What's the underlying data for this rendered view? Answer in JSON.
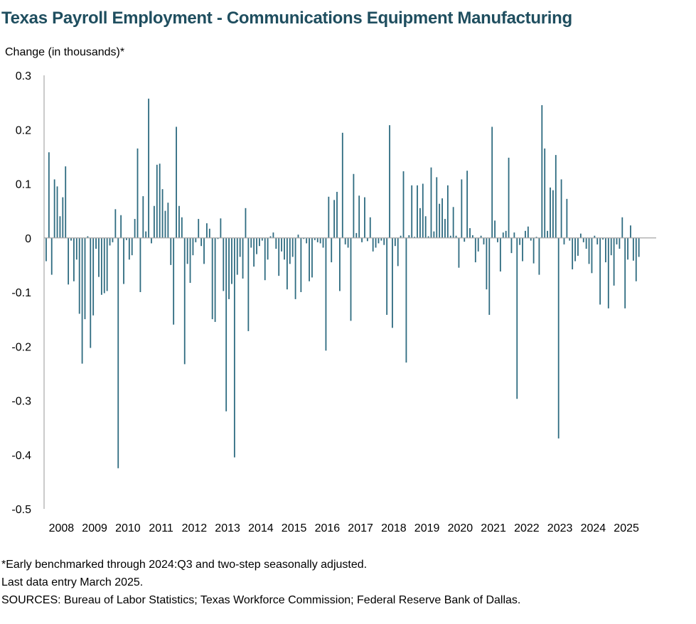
{
  "chart_data": {
    "type": "bar",
    "title": "Texas Payroll Employment - Communications Equipment Manufacturing",
    "ylabel": "Change (in thousands)*",
    "xlabel": "",
    "ylim": [
      -0.5,
      0.3
    ],
    "yticks": [
      "0.3",
      "0.2",
      "0.1",
      "0",
      "-0.1",
      "-0.2",
      "-0.3",
      "-0.4",
      "-0.5"
    ],
    "year_labels": [
      "2008",
      "2009",
      "2010",
      "2011",
      "2012",
      "2013",
      "2014",
      "2015",
      "2016",
      "2017",
      "2018",
      "2019",
      "2020",
      "2021",
      "2022",
      "2023",
      "2024",
      "2025"
    ],
    "start": "2008-01",
    "end": "2025-03",
    "bar_color": "#2e6b80",
    "grid": false,
    "values": [
      -0.043,
      0.158,
      -0.068,
      0.108,
      0.095,
      0.04,
      0.075,
      0.132,
      -0.086,
      -0.005,
      -0.08,
      -0.04,
      -0.14,
      -0.232,
      -0.15,
      0.003,
      -0.203,
      -0.143,
      -0.02,
      -0.072,
      -0.105,
      -0.102,
      -0.098,
      -0.014,
      -0.008,
      0.053,
      -0.425,
      0.042,
      -0.085,
      -0.004,
      -0.04,
      -0.032,
      0.035,
      0.165,
      -0.1,
      0.077,
      0.012,
      0.257,
      -0.01,
      0.059,
      0.135,
      0.137,
      0.09,
      0.05,
      0.065,
      -0.05,
      -0.16,
      0.205,
      0.059,
      0.038,
      -0.233,
      -0.048,
      -0.083,
      -0.032,
      -0.008,
      0.035,
      -0.015,
      -0.048,
      0.027,
      0.017,
      -0.15,
      -0.155,
      -0.002,
      0.036,
      -0.098,
      -0.32,
      -0.113,
      -0.085,
      -0.405,
      -0.068,
      -0.035,
      -0.075,
      0.055,
      -0.172,
      -0.018,
      -0.053,
      -0.03,
      -0.015,
      -0.005,
      -0.078,
      -0.04,
      0.003,
      0.01,
      -0.02,
      -0.07,
      -0.025,
      -0.04,
      -0.095,
      -0.048,
      -0.035,
      -0.113,
      0.006,
      -0.1,
      -0.002,
      -0.01,
      -0.08,
      -0.073,
      -0.004,
      -0.008,
      -0.01,
      -0.018,
      -0.208,
      0.076,
      -0.045,
      0.07,
      0.085,
      -0.098,
      0.194,
      -0.012,
      -0.018,
      -0.153,
      0.118,
      0.009,
      0.078,
      -0.008,
      0.075,
      -0.006,
      0.038,
      -0.025,
      -0.018,
      -0.01,
      -0.005,
      -0.013,
      -0.142,
      0.208,
      -0.166,
      -0.015,
      -0.052,
      0.004,
      0.123,
      -0.23,
      0.005,
      0.097,
      0.002,
      0.097,
      0.055,
      0.1,
      0.04,
      0.003,
      0.13,
      0.012,
      0.112,
      0.063,
      0.073,
      0.035,
      0.097,
      0.004,
      0.057,
      0.004,
      -0.055,
      0.108,
      -0.007,
      0.124,
      0.018,
      0.005,
      -0.045,
      -0.025,
      0.004,
      -0.012,
      -0.095,
      -0.142,
      0.205,
      0.032,
      -0.008,
      -0.062,
      0.01,
      0.013,
      0.148,
      -0.028,
      0.01,
      -0.297,
      -0.013,
      -0.043,
      0.013,
      0.021,
      -0.005,
      -0.047,
      0.002,
      -0.068,
      0.245,
      0.165,
      0.013,
      0.093,
      0.088,
      0.153,
      -0.37,
      0.108,
      -0.012,
      0.072,
      -0.005,
      -0.058,
      -0.043,
      -0.033,
      0.008,
      -0.008,
      -0.02,
      -0.048,
      -0.065,
      0.004,
      -0.012,
      -0.123,
      -0.003,
      -0.045,
      -0.13,
      -0.032,
      -0.088,
      -0.012,
      -0.02,
      0.038,
      -0.13,
      -0.04,
      0.023,
      -0.042,
      -0.08,
      -0.035
    ]
  },
  "footnotes": [
    "*Early benchmarked through 2024:Q3 and two-step seasonally adjusted.",
    "Last data entry March 2025.",
    "SOURCES: Bureau of Labor Statistics; Texas Workforce Commission; Federal Reserve Bank of Dallas."
  ]
}
